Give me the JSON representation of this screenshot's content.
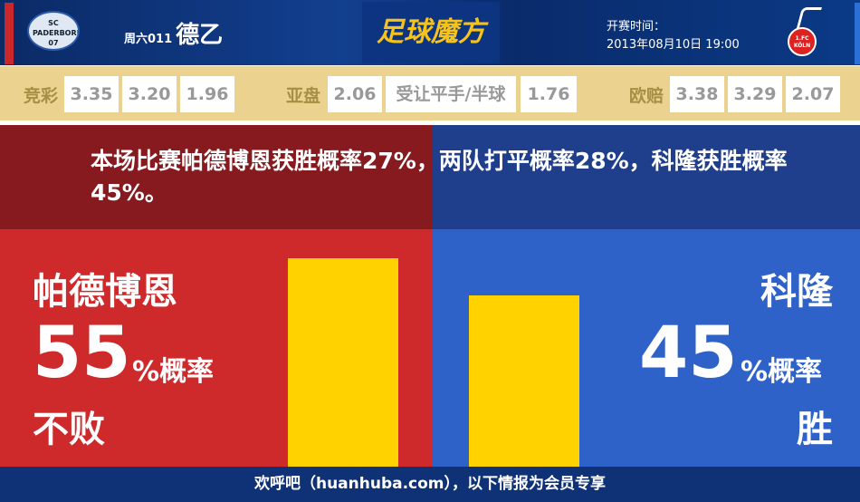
{
  "header": {
    "home_logo_text": "SC PADERBORN 07",
    "round": "周六011",
    "league": "德乙",
    "brand": "足球魔方",
    "kickoff_label": "开赛时间：",
    "kickoff_time": "2013年08月10日 19:00",
    "away_logo_text": "1.FC KÖLN"
  },
  "odds": {
    "jingcai": {
      "label": "竞彩",
      "values": [
        "3.35",
        "3.20",
        "1.96"
      ]
    },
    "asian": {
      "label": "亚盘",
      "home": "2.06",
      "line": "受让平手/半球",
      "away": "1.76"
    },
    "euro": {
      "label": "欧赔",
      "values": [
        "3.38",
        "3.29",
        "2.07"
      ]
    }
  },
  "summary": "本场比赛帕德博恩获胜概率27%，两队打平概率28%，科隆获胜概率45%。",
  "home": {
    "name": "帕德博恩",
    "percent": "55",
    "unit": "%概率",
    "outcome": "不败",
    "value": 55
  },
  "away": {
    "name": "科隆",
    "percent": "45",
    "unit": "%概率",
    "outcome": "胜",
    "value": 45
  },
  "colors": {
    "home": "#cf2a2b",
    "away": "#2e62c8",
    "bar": "#ffd200"
  },
  "footer": "欢呼吧（huanhuba.com），以下情报为会员专享"
}
